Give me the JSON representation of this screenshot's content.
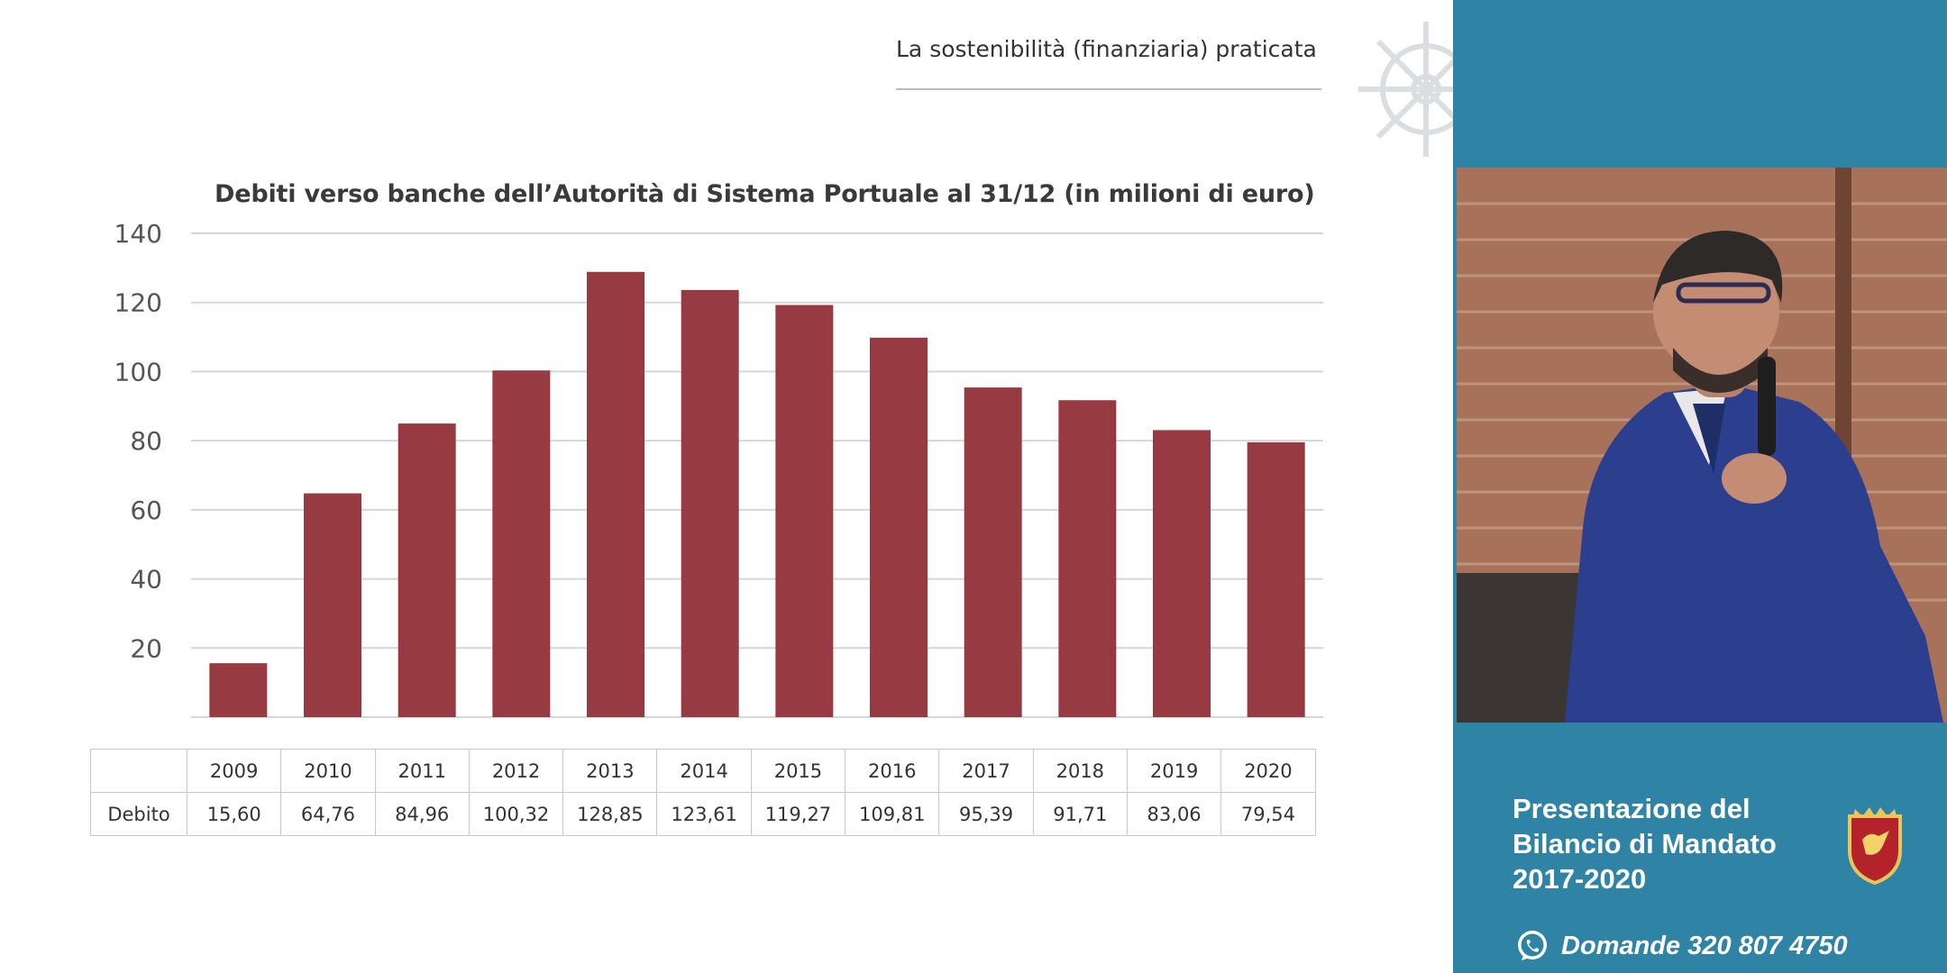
{
  "slide": {
    "header": "La sostenibilità (finanziaria) praticata"
  },
  "chart_data": {
    "type": "bar",
    "title": "Debiti verso banche dell’Autorità di Sistema Portuale al 31/12 (in milioni di euro)",
    "categories": [
      "2009",
      "2010",
      "2011",
      "2012",
      "2013",
      "2014",
      "2015",
      "2016",
      "2017",
      "2018",
      "2019",
      "2020"
    ],
    "values": [
      15.6,
      64.76,
      84.96,
      100.32,
      128.85,
      123.61,
      119.27,
      109.81,
      95.39,
      91.71,
      83.06,
      79.54
    ],
    "ylim": [
      0,
      140
    ],
    "yticks": [
      "20",
      "40",
      "60",
      "80",
      "100",
      "120",
      "140"
    ],
    "grid": true,
    "bar_color": "#983a41",
    "table": {
      "row_label": "Debito",
      "values": [
        "15,60",
        "64,76",
        "84,96",
        "100,32",
        "128,85",
        "123,61",
        "119,27",
        "109,81",
        "95,39",
        "91,71",
        "83,06",
        "79,54"
      ]
    }
  },
  "panel": {
    "title_lines": [
      "Presentazione del",
      "Bilancio di Mandato",
      "2017-2020"
    ],
    "phone": "Domande 320 807 4750",
    "bg_color": "#2f83a4",
    "icons": [
      "whatsapp-icon",
      "crest-icon"
    ]
  }
}
